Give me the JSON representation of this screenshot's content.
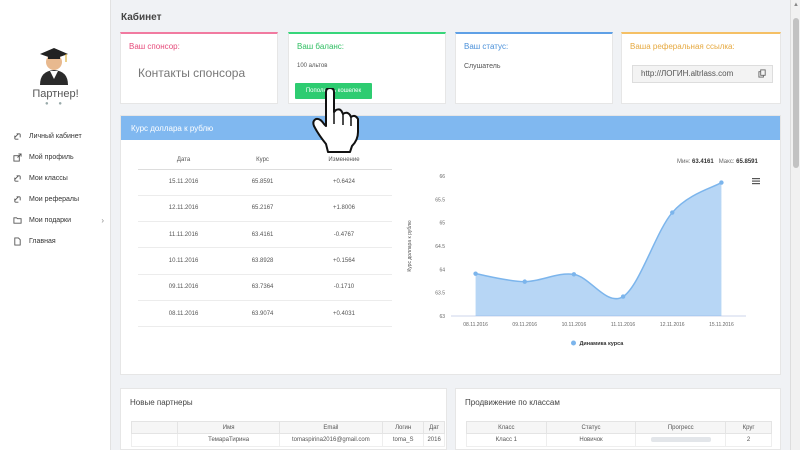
{
  "sidebar": {
    "title": "Партнер!",
    "dots": "● ●",
    "items": [
      {
        "label": "Личный кабинет",
        "icon": "link-icon"
      },
      {
        "label": "Мой профиль",
        "icon": "external-link-icon"
      },
      {
        "label": "Мои классы",
        "icon": "link-icon"
      },
      {
        "label": "Мои рефералы",
        "icon": "link-icon"
      },
      {
        "label": "Мои подарки",
        "icon": "folder-icon",
        "arrow": "›"
      },
      {
        "label": "Главная",
        "icon": "file-icon"
      }
    ]
  },
  "header": {
    "title": "Кабинет"
  },
  "cards": {
    "sponsor": {
      "label": "Ваш спонсор:",
      "value": "Контакты спонсора"
    },
    "balance": {
      "label": "Ваш баланс:",
      "value": "100 альтов",
      "button": "Пополнить кошелек"
    },
    "status": {
      "label": "Ваш статус:",
      "value": "Слушатель"
    },
    "referral": {
      "label": "Ваша реферальная ссылка:",
      "value": "http://ЛОГИН.altrlass.com"
    }
  },
  "rate": {
    "title": "Курс доллара к рублю",
    "columns": [
      "Дата",
      "Курс",
      "Изменение"
    ],
    "rows": [
      [
        "15.11.2016",
        "65.8591",
        "+0.6424"
      ],
      [
        "12.11.2016",
        "65.2167",
        "+1.8006"
      ],
      [
        "11.11.2016",
        "63.4161",
        "-0.4767"
      ],
      [
        "10.11.2016",
        "63.8928",
        "+0.1564"
      ],
      [
        "09.11.2016",
        "63.7364",
        "-0.1710"
      ],
      [
        "08.11.2016",
        "63.9074",
        "+0.4031"
      ]
    ],
    "min_label": "Мин:",
    "min_value": "63.4161",
    "max_label": "Макс:",
    "max_value": "65.8591"
  },
  "chart_data": {
    "type": "area",
    "categories": [
      "08.11.2016",
      "09.11.2016",
      "10.11.2016",
      "11.11.2016",
      "12.11.2016",
      "15.11.2016"
    ],
    "series": [
      {
        "name": "Динамика курса",
        "values": [
          63.9074,
          63.7364,
          63.8928,
          63.4161,
          65.2167,
          65.8591
        ]
      }
    ],
    "ylabel": "Курс доллара к рублю",
    "ylim": [
      63,
      66
    ],
    "yticks": [
      "63",
      "63.5",
      "64",
      "64.5",
      "65",
      "65.5",
      "66"
    ],
    "legend": "bottom",
    "color": "#7cb5ec"
  },
  "partners": {
    "title": "Новые партнеры",
    "columns": [
      "",
      "Имя",
      "Email",
      "Логин",
      "Дат"
    ],
    "rows": [
      [
        "",
        "ТемараТирина",
        "tomaspirina2016@gmail.com",
        "toma_S",
        "2016"
      ]
    ]
  },
  "progress": {
    "title": "Продвижение по классам",
    "columns": [
      "Класс",
      "Статус",
      "Прогресс",
      "Круг"
    ],
    "rows": [
      [
        "Класс 1",
        "Новичок",
        "",
        "2"
      ]
    ]
  }
}
